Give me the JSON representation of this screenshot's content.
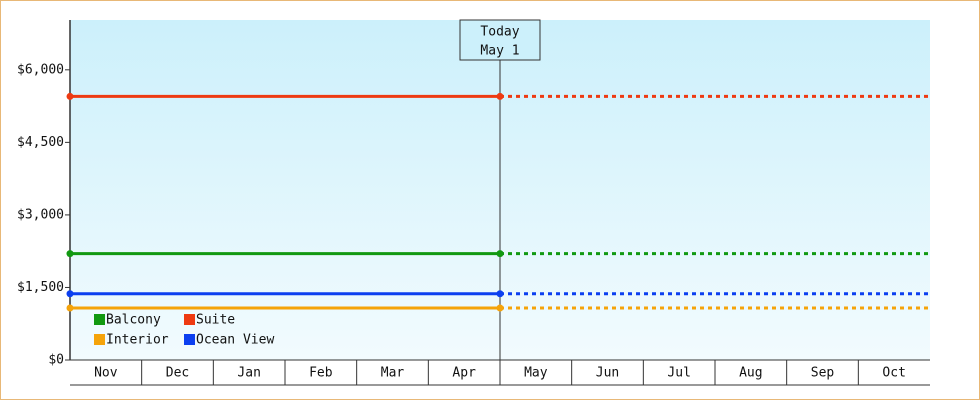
{
  "chart_data": {
    "type": "line",
    "categories": [
      "Nov",
      "Dec",
      "Jan",
      "Feb",
      "Mar",
      "Apr",
      "May",
      "Jun",
      "Jul",
      "Aug",
      "Sep",
      "Oct"
    ],
    "series": [
      {
        "name": "Balcony",
        "color": "#119911",
        "value": 2200
      },
      {
        "name": "Suite",
        "color": "#ee3a12",
        "value": 5450
      },
      {
        "name": "Interior",
        "color": "#f5a30a",
        "value": 1075
      },
      {
        "name": "Ocean View",
        "color": "#0b3ff0",
        "value": 1370
      }
    ],
    "today": {
      "label": "Today",
      "date": "May 1",
      "category": "May"
    },
    "ylim": [
      0,
      7030
    ],
    "yticks": [
      {
        "value": 0,
        "label": "$0"
      },
      {
        "value": 1500,
        "label": "$1,500"
      },
      {
        "value": 3000,
        "label": "$3,000"
      },
      {
        "value": 4500,
        "label": "$4,500"
      },
      {
        "value": 6000,
        "label": "$6,000"
      }
    ]
  }
}
